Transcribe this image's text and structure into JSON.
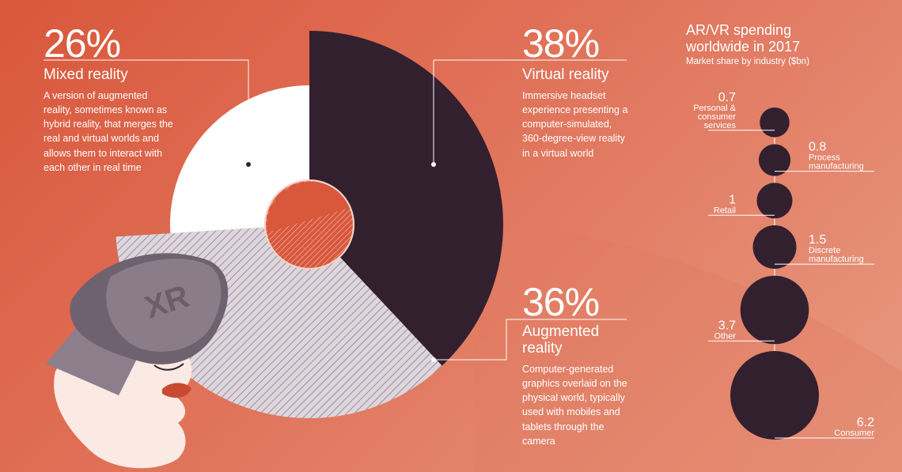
{
  "colors": {
    "background": "#dc6045",
    "virtual_reality": "#33202e",
    "mixed_reality": "#ffffff",
    "augmented_reality": "#b8aeb6",
    "bubble": "#33202e",
    "text": "#ffffff"
  },
  "headset_label": "XR",
  "segments": [
    {
      "key": "mixed",
      "pct": "26%",
      "name": "Mixed reality",
      "desc": "A version of augmented reality, sometimes known as hybrid reality, that merges the real and virtual worlds and allows them to interact with each other in real time"
    },
    {
      "key": "virtual",
      "pct": "38%",
      "name": "Virtual reality",
      "desc": "Immersive headset experience presenting a computer-simulated, 360-degree-view reality in a virtual world"
    },
    {
      "key": "augmented",
      "pct": "36%",
      "name": "Augmented reality",
      "desc": "Computer-generated graphics overlaid on the physical world, typically used with mobiles and tablets through the camera"
    }
  ],
  "side_chart": {
    "title": "AR/VR spending worldwide in 2017",
    "subtitle": "Market share by industry ($bn)"
  },
  "chart_data": [
    {
      "type": "pie",
      "categories": [
        "Mixed reality",
        "Virtual reality",
        "Augmented reality"
      ],
      "values": [
        26,
        38,
        36
      ],
      "unit": "%"
    },
    {
      "type": "bubble",
      "title": "AR/VR spending worldwide in 2017",
      "subtitle": "Market share by industry ($bn)",
      "categories": [
        "Personal & consumer services",
        "Process manufacturing",
        "Retail",
        "Discrete manufacturing",
        "Other",
        "Consumer"
      ],
      "values": [
        0.7,
        0.8,
        1,
        1.5,
        3.7,
        6.2
      ],
      "value_labels": [
        "0.7",
        "0.8",
        "1",
        "1.5",
        "3.7",
        "6.2"
      ],
      "label_lines": [
        [
          "Personal &",
          "consumer",
          "services"
        ],
        [
          "Process",
          "manufacturing"
        ],
        [
          "Retail"
        ],
        [
          "Discrete",
          "manufacturing"
        ],
        [
          "Other"
        ],
        [
          "Consumer"
        ]
      ]
    }
  ]
}
